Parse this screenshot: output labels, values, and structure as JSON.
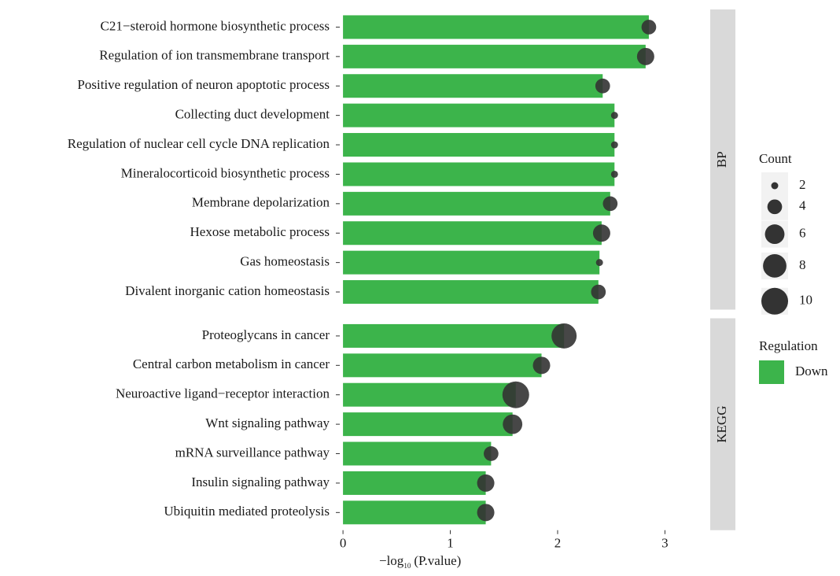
{
  "chart_data": {
    "type": "bar",
    "color": "#3cb44b",
    "bubble_color": "#333333",
    "facets": [
      {
        "label": "BP",
        "categories": [
          "C21−steroid hormone biosynthetic process",
          "Regulation of ion transmembrane transport",
          "Positive regulation of neuron apoptotic process",
          "Collecting duct development",
          "Regulation of nuclear cell cycle DNA replication",
          "Mineralocorticoid biosynthetic process",
          "Membrane depolarization",
          "Hexose metabolic process",
          "Gas homeostasis",
          "Divalent inorganic cation homeostasis"
        ],
        "values": [
          2.85,
          2.82,
          2.42,
          2.53,
          2.53,
          2.53,
          2.49,
          2.41,
          2.39,
          2.38
        ],
        "counts": [
          4,
          5,
          4,
          2,
          2,
          2,
          4,
          5,
          2,
          4
        ]
      },
      {
        "label": "KEGG",
        "categories": [
          "Proteoglycans in cancer",
          "Central carbon metabolism in cancer",
          "Neuroactive ligand−receptor interaction",
          "Wnt signaling pathway",
          "mRNA surveillance pathway",
          "Insulin signaling pathway",
          "Ubiquitin mediated proteolysis"
        ],
        "values": [
          2.06,
          1.85,
          1.61,
          1.58,
          1.38,
          1.33,
          1.33
        ],
        "counts": [
          9,
          5,
          10,
          6,
          4,
          5,
          5
        ]
      }
    ],
    "xlim": [
      -0.03,
      3.4
    ],
    "xticks": [
      0,
      1,
      2,
      3
    ],
    "xlabel": {
      "main": "−log",
      "sub": "10",
      "rest": "(P.value)"
    },
    "size_legend": {
      "title": "Count",
      "sizes": [
        2,
        4,
        6,
        8,
        10
      ]
    },
    "color_legend": {
      "title": "Regulation",
      "entries": [
        "Down"
      ]
    }
  }
}
